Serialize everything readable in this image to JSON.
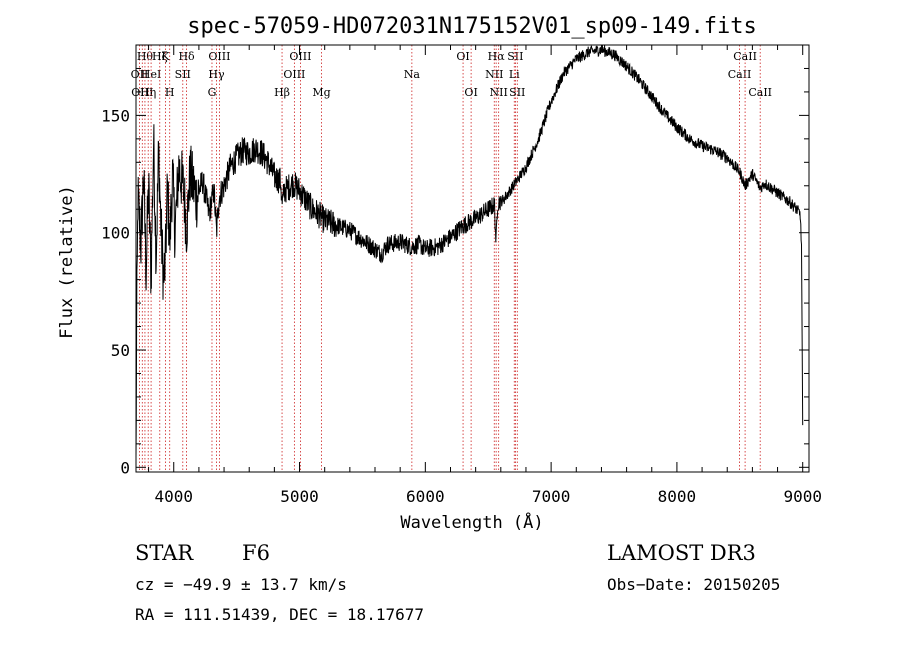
{
  "chart_data": {
    "type": "line",
    "title": "spec-57059-HD072031N175152V01_sp09-149.fits",
    "xlabel": "Wavelength (Å)",
    "ylabel": "Flux (relative)",
    "xlim": [
      3700,
      9050
    ],
    "ylim": [
      -2,
      180
    ],
    "x_ticks": [
      4000,
      5000,
      6000,
      7000,
      8000,
      9000
    ],
    "y_ticks": [
      0,
      50,
      100,
      150
    ],
    "line_color": "#000000",
    "marker_color": "#cc2222",
    "spectrum_anchors": [
      [
        3700,
        0
      ],
      [
        3705,
        55
      ],
      [
        3715,
        115
      ],
      [
        3740,
        95
      ],
      [
        3760,
        125
      ],
      [
        3780,
        85
      ],
      [
        3800,
        120
      ],
      [
        3820,
        80
      ],
      [
        3840,
        140
      ],
      [
        3860,
        90
      ],
      [
        3880,
        135
      ],
      [
        3900,
        100
      ],
      [
        3920,
        80
      ],
      [
        3934,
        88
      ],
      [
        3950,
        120
      ],
      [
        3968,
        95
      ],
      [
        3990,
        125
      ],
      [
        4010,
        100
      ],
      [
        4040,
        128
      ],
      [
        4080,
        118
      ],
      [
        4102,
        102
      ],
      [
        4130,
        125
      ],
      [
        4180,
        115
      ],
      [
        4230,
        122
      ],
      [
        4280,
        108
      ],
      [
        4320,
        118
      ],
      [
        4340,
        100
      ],
      [
        4360,
        115
      ],
      [
        4400,
        120
      ],
      [
        4450,
        128
      ],
      [
        4500,
        132
      ],
      [
        4550,
        135
      ],
      [
        4600,
        134
      ],
      [
        4650,
        136
      ],
      [
        4700,
        134
      ],
      [
        4750,
        130
      ],
      [
        4800,
        124
      ],
      [
        4850,
        122
      ],
      [
        4861,
        112
      ],
      [
        4880,
        118
      ],
      [
        4950,
        121
      ],
      [
        5000,
        118
      ],
      [
        5050,
        114
      ],
      [
        5100,
        110
      ],
      [
        5150,
        108
      ],
      [
        5200,
        105
      ],
      [
        5300,
        103
      ],
      [
        5400,
        101
      ],
      [
        5500,
        97
      ],
      [
        5600,
        93
      ],
      [
        5650,
        91
      ],
      [
        5700,
        95
      ],
      [
        5800,
        96
      ],
      [
        5890,
        94
      ],
      [
        5950,
        95
      ],
      [
        6000,
        93
      ],
      [
        6100,
        94
      ],
      [
        6200,
        98
      ],
      [
        6300,
        103
      ],
      [
        6400,
        106
      ],
      [
        6500,
        110
      ],
      [
        6550,
        112
      ],
      [
        6562,
        95
      ],
      [
        6575,
        113
      ],
      [
        6620,
        114
      ],
      [
        6700,
        120
      ],
      [
        6800,
        128
      ],
      [
        6900,
        140
      ],
      [
        7000,
        156
      ],
      [
        7100,
        168
      ],
      [
        7200,
        174
      ],
      [
        7300,
        177
      ],
      [
        7400,
        178
      ],
      [
        7500,
        176
      ],
      [
        7600,
        171
      ],
      [
        7700,
        165
      ],
      [
        7800,
        158
      ],
      [
        7900,
        151
      ],
      [
        8000,
        145
      ],
      [
        8100,
        140
      ],
      [
        8200,
        137
      ],
      [
        8300,
        135
      ],
      [
        8400,
        132
      ],
      [
        8498,
        126
      ],
      [
        8542,
        120
      ],
      [
        8600,
        125
      ],
      [
        8662,
        119
      ],
      [
        8700,
        121
      ],
      [
        8800,
        117
      ],
      [
        8900,
        113
      ],
      [
        8950,
        110
      ],
      [
        8980,
        108
      ],
      [
        8990,
        95
      ],
      [
        9000,
        18
      ]
    ],
    "line_markers": [
      {
        "wavelength": 3728,
        "label": "OII",
        "row": 2
      },
      {
        "wavelength": 3750,
        "label": "OIII",
        "row": 3
      },
      {
        "wavelength": 3771,
        "label": "Hθ",
        "row": 1
      },
      {
        "wavelength": 3797,
        "label": "Hη",
        "row": 3
      },
      {
        "wavelength": 3820,
        "label": "HeI",
        "row": 2
      },
      {
        "wavelength": 3889,
        "label": "Hζ",
        "row": 1
      },
      {
        "wavelength": 3934,
        "label": "K",
        "row": 1
      },
      {
        "wavelength": 3968,
        "label": "H",
        "row": 3
      },
      {
        "wavelength": 4072,
        "label": "SII",
        "row": 2
      },
      {
        "wavelength": 4102,
        "label": "Hδ",
        "row": 1
      },
      {
        "wavelength": 4304,
        "label": "G",
        "row": 3
      },
      {
        "wavelength": 4340,
        "label": "Hγ",
        "row": 2
      },
      {
        "wavelength": 4363,
        "label": "OIII",
        "row": 1
      },
      {
        "wavelength": 4861,
        "label": "Hβ",
        "row": 3
      },
      {
        "wavelength": 4959,
        "label": "OIII",
        "row": 2
      },
      {
        "wavelength": 5007,
        "label": "OIII",
        "row": 1
      },
      {
        "wavelength": 5175,
        "label": "Mg",
        "row": 3
      },
      {
        "wavelength": 5893,
        "label": "Na",
        "row": 2
      },
      {
        "wavelength": 6300,
        "label": "OI",
        "row": 1
      },
      {
        "wavelength": 6364,
        "label": "OI",
        "row": 3
      },
      {
        "wavelength": 6548,
        "label": "NII",
        "row": 2
      },
      {
        "wavelength": 6563,
        "label": "Hα",
        "row": 1
      },
      {
        "wavelength": 6583,
        "label": "NII",
        "row": 3
      },
      {
        "wavelength": 6707,
        "label": "Li",
        "row": 2
      },
      {
        "wavelength": 6716,
        "label": "SII",
        "row": 1
      },
      {
        "wavelength": 6731,
        "label": "SII",
        "row": 3
      },
      {
        "wavelength": 8498,
        "label": "CaII",
        "row": 2
      },
      {
        "wavelength": 8542,
        "label": "CaII",
        "row": 1
      },
      {
        "wavelength": 8662,
        "label": "CaII",
        "row": 3
      }
    ]
  },
  "info": {
    "object_class": "STAR",
    "subclass": "F6",
    "survey": "LAMOST DR3",
    "cz": "cz = −49.9 ± 13.7 km/s",
    "obs_date": "Obs−Date: 20150205",
    "coords": "RA = 111.51439, DEC =  18.17677"
  }
}
